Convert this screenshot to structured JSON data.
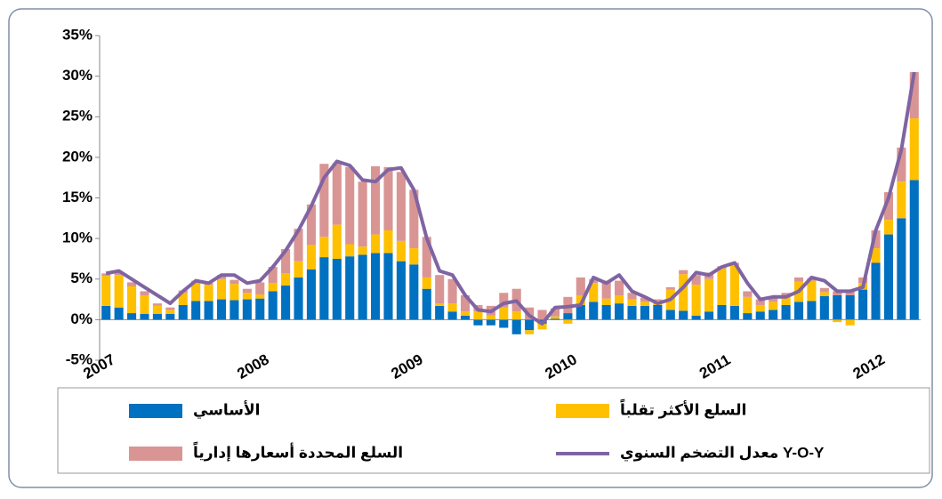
{
  "chart_data": {
    "type": "bar",
    "categories": [
      "2007",
      null,
      null,
      null,
      null,
      null,
      null,
      null,
      null,
      null,
      null,
      null,
      "2008",
      null,
      null,
      null,
      null,
      null,
      null,
      null,
      null,
      null,
      null,
      null,
      "2009",
      null,
      null,
      null,
      null,
      null,
      null,
      null,
      null,
      null,
      null,
      null,
      "2010",
      null,
      null,
      null,
      null,
      null,
      null,
      null,
      null,
      null,
      null,
      null,
      "2011",
      null,
      null,
      null,
      null,
      null,
      null,
      null,
      null,
      null,
      null,
      null,
      "2012",
      null,
      null,
      null
    ],
    "series": [
      {
        "name": "الأساسي",
        "color": "#0070c0",
        "values": [
          1.7,
          1.5,
          0.8,
          0.7,
          0.7,
          0.7,
          1.8,
          2.3,
          2.3,
          2.5,
          2.4,
          2.5,
          2.6,
          3.5,
          4.2,
          5.2,
          6.2,
          7.7,
          7.5,
          7.8,
          8.0,
          8.2,
          8.2,
          7.2,
          6.8,
          3.8,
          1.7,
          1.0,
          0.5,
          -0.7,
          -0.7,
          -1.0,
          -1.8,
          -1.3,
          -0.5,
          0.1,
          0.8,
          1.8,
          2.2,
          1.8,
          2.0,
          1.7,
          1.7,
          1.8,
          1.2,
          1.1,
          0.5,
          1.0,
          1.8,
          1.7,
          0.8,
          1.0,
          1.2,
          1.8,
          2.2,
          2.3,
          2.9,
          3.0,
          3.0,
          3.7,
          7.0,
          10.5,
          12.5,
          17.2
        ]
      },
      {
        "name": "السلع الأكثر تقلباً",
        "color": "#ffc000",
        "values": [
          3.7,
          4.0,
          3.3,
          2.3,
          1.0,
          0.5,
          1.5,
          2.2,
          2.0,
          2.5,
          2.0,
          0.8,
          0.5,
          1.0,
          1.5,
          2.0,
          3.0,
          2.5,
          4.2,
          1.5,
          1.0,
          2.3,
          2.8,
          2.5,
          2.0,
          1.4,
          0.3,
          1.0,
          0.5,
          1.0,
          0.5,
          1.5,
          1.0,
          -0.5,
          -0.7,
          0.3,
          -0.5,
          1.2,
          2.3,
          0.8,
          1.0,
          0.8,
          0.5,
          0.5,
          2.5,
          4.5,
          3.8,
          4.0,
          4.5,
          5.0,
          2.0,
          0.8,
          1.0,
          1.2,
          2.5,
          2.5,
          0.5,
          -0.3,
          -0.7,
          0.8,
          1.8,
          1.8,
          4.5,
          7.6
        ]
      },
      {
        "name": "السلع المحددة أسعارها إدارياً",
        "color": "#d99594",
        "values": [
          0.3,
          0.3,
          0.5,
          0.5,
          0.3,
          0.3,
          0.3,
          0.3,
          0.2,
          0.5,
          0.5,
          0.5,
          1.5,
          2.0,
          3.0,
          4.0,
          5.0,
          9.0,
          7.6,
          9.5,
          8.0,
          8.4,
          7.8,
          8.5,
          7.2,
          5.0,
          3.5,
          3.0,
          2.0,
          0.8,
          1.2,
          1.8,
          2.8,
          1.5,
          1.2,
          1.0,
          2.0,
          2.2,
          0.5,
          2.2,
          1.8,
          0.8,
          0.5,
          0.2,
          0.3,
          0.5,
          1.2,
          0.8,
          0.3,
          0.3,
          0.7,
          0.7,
          0.5,
          0.3,
          0.5,
          0.3,
          0.5,
          0.5,
          0.5,
          0.7,
          2.2,
          3.4,
          4.2,
          5.7
        ]
      },
      {
        "name": "معدل التضخم السنوي Y-O-Y",
        "type": "line",
        "color": "#8064a2",
        "values": [
          5.7,
          6.0,
          5.0,
          4.0,
          3.0,
          2.0,
          3.5,
          4.8,
          4.5,
          5.5,
          5.5,
          4.5,
          4.8,
          6.5,
          8.5,
          11,
          14,
          17.5,
          19.5,
          19.0,
          17.2,
          17.0,
          18.5,
          18.7,
          16,
          10,
          6,
          5.5,
          3,
          1.2,
          1.0,
          2,
          2.3,
          0.5,
          -0.5,
          1.5,
          1.6,
          1.8,
          5.2,
          4.5,
          5.5,
          3.5,
          2.8,
          2.0,
          2.5,
          4.0,
          5.8,
          5.5,
          6.5,
          7,
          4.5,
          2.5,
          2.8,
          2.8,
          3.5,
          5.2,
          4.8,
          3.5,
          3.5,
          4.0,
          11,
          15,
          21,
          30.5
        ]
      }
    ],
    "ylim": [
      -5,
      35
    ],
    "yticks": [
      {
        "value": -5,
        "label": "-5%"
      },
      {
        "value": 0,
        "label": "0%"
      },
      {
        "value": 5,
        "label": "5%"
      },
      {
        "value": 10,
        "label": "10%"
      },
      {
        "value": 15,
        "label": "15%"
      },
      {
        "value": 20,
        "label": "20%"
      },
      {
        "value": 25,
        "label": "25%"
      },
      {
        "value": 30,
        "label": "30%"
      },
      {
        "value": 35,
        "label": "35%"
      }
    ],
    "stacked": true,
    "grid": false
  }
}
